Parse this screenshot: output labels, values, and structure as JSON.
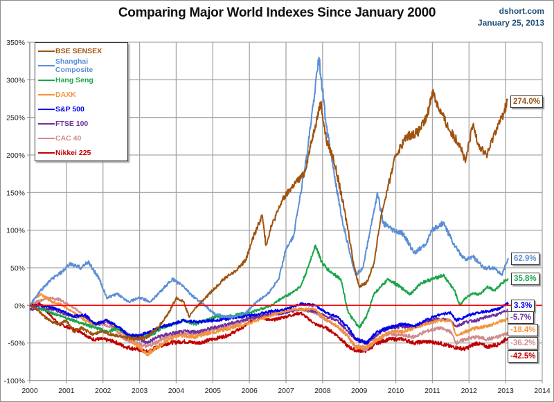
{
  "header": {
    "title": "Comparing Major World Indexes Since January 2000",
    "source": "dshort.com",
    "date": "January 25, 2013"
  },
  "chart_data": {
    "type": "line",
    "title": "Comparing Major World Indexes Since January 2000",
    "xlabel": "",
    "ylabel": "",
    "xlim": [
      2000,
      2014
    ],
    "ylim": [
      -100,
      350
    ],
    "grid": true,
    "legend_position": "top-left",
    "x_ticks": [
      "2000",
      "2001",
      "2002",
      "2003",
      "2004",
      "2005",
      "2006",
      "2007",
      "2008",
      "2009",
      "2010",
      "2011",
      "2012",
      "2013",
      "2014"
    ],
    "y_ticks": [
      "350%",
      "300%",
      "250%",
      "200%",
      "150%",
      "100%",
      "50%",
      "0%",
      "-50%",
      "-100%"
    ],
    "y_tick_values": [
      350,
      300,
      250,
      200,
      150,
      100,
      50,
      0,
      -50,
      -100
    ],
    "reference_line": {
      "value": 0,
      "color": "#ff0000"
    },
    "series": [
      {
        "name": "BSE SENSEX",
        "color": "#a0520f",
        "end_label": "274.0%",
        "x": [
          2000,
          2000.2,
          2000.4,
          2000.6,
          2000.8,
          2001,
          2001.2,
          2001.4,
          2001.7,
          2002,
          2002.3,
          2002.6,
          2002.9,
          2003.2,
          2003.5,
          2003.8,
          2004,
          2004.2,
          2004.35,
          2004.5,
          2004.8,
          2005,
          2005.3,
          2005.6,
          2005.9,
          2006.1,
          2006.35,
          2006.45,
          2006.6,
          2006.9,
          2007.2,
          2007.5,
          2007.8,
          2007.95,
          2008.1,
          2008.3,
          2008.5,
          2008.7,
          2008.85,
          2009,
          2009.2,
          2009.4,
          2009.6,
          2009.8,
          2010,
          2010.3,
          2010.6,
          2010.85,
          2011,
          2011.2,
          2011.5,
          2011.75,
          2011.9,
          2012.1,
          2012.3,
          2012.5,
          2012.7,
          2012.9,
          2013.07
        ],
        "y": [
          0,
          -5,
          -15,
          -22,
          -25,
          -20,
          -35,
          -30,
          -38,
          -35,
          -40,
          -42,
          -45,
          -42,
          -30,
          -10,
          10,
          5,
          -15,
          -5,
          10,
          20,
          35,
          45,
          60,
          90,
          120,
          80,
          105,
          140,
          160,
          175,
          240,
          270,
          220,
          195,
          150,
          100,
          55,
          25,
          30,
          55,
          120,
          160,
          200,
          225,
          230,
          250,
          285,
          260,
          230,
          215,
          190,
          240,
          210,
          200,
          230,
          250,
          274
        ]
      },
      {
        "name": "Shanghai Composite",
        "color": "#5b8fd6",
        "end_label": "62.9%",
        "x": [
          2000,
          2000.3,
          2000.6,
          2000.9,
          2001.1,
          2001.4,
          2001.6,
          2001.9,
          2002.1,
          2002.4,
          2002.7,
          2003,
          2003.3,
          2003.6,
          2003.9,
          2004.2,
          2004.5,
          2004.8,
          2005,
          2005.3,
          2005.6,
          2005.9,
          2006.2,
          2006.5,
          2006.8,
          2007,
          2007.2,
          2007.4,
          2007.6,
          2007.8,
          2007.9,
          2008.1,
          2008.3,
          2008.5,
          2008.7,
          2008.9,
          2009.1,
          2009.3,
          2009.5,
          2009.65,
          2009.9,
          2010.2,
          2010.5,
          2010.8,
          2011,
          2011.3,
          2011.6,
          2011.9,
          2012.1,
          2012.4,
          2012.7,
          2012.9,
          2013.07
        ],
        "y": [
          0,
          20,
          35,
          45,
          55,
          50,
          58,
          35,
          10,
          15,
          5,
          10,
          5,
          20,
          35,
          25,
          10,
          0,
          -10,
          -15,
          -15,
          -10,
          5,
          15,
          35,
          75,
          90,
          150,
          210,
          290,
          330,
          240,
          180,
          120,
          80,
          40,
          50,
          100,
          150,
          110,
          100,
          95,
          70,
          80,
          100,
          110,
          80,
          60,
          65,
          50,
          50,
          40,
          62.9
        ]
      },
      {
        "name": "Hang Seng",
        "color": "#1aa64a",
        "end_label": "35.8%",
        "x": [
          2000,
          2000.3,
          2000.6,
          2000.9,
          2001.2,
          2001.5,
          2001.8,
          2002.1,
          2002.4,
          2002.7,
          2003,
          2003.3,
          2003.6,
          2003.9,
          2004.2,
          2004.5,
          2004.8,
          2005.1,
          2005.4,
          2005.7,
          2006,
          2006.3,
          2006.6,
          2006.9,
          2007.1,
          2007.4,
          2007.6,
          2007.8,
          2008,
          2008.2,
          2008.5,
          2008.7,
          2008.85,
          2009,
          2009.2,
          2009.4,
          2009.6,
          2009.8,
          2010.1,
          2010.4,
          2010.7,
          2011,
          2011.3,
          2011.6,
          2011.75,
          2011.9,
          2012.1,
          2012.3,
          2012.5,
          2012.7,
          2012.9,
          2013.07
        ],
        "y": [
          0,
          -5,
          -10,
          -15,
          -20,
          -25,
          -30,
          -35,
          -30,
          -40,
          -42,
          -40,
          -30,
          -25,
          -20,
          -25,
          -20,
          -15,
          -15,
          -12,
          -10,
          -5,
          0,
          10,
          15,
          25,
          50,
          80,
          55,
          45,
          35,
          -10,
          -20,
          -30,
          -15,
          15,
          25,
          35,
          25,
          15,
          30,
          35,
          40,
          20,
          0,
          10,
          15,
          15,
          25,
          20,
          30,
          35.8
        ]
      },
      {
        "name": "DAXK",
        "color": "#f5933a",
        "end_label": "-18.4%",
        "x": [
          2000,
          2000.15,
          2000.3,
          2000.6,
          2000.9,
          2001.2,
          2001.5,
          2001.8,
          2002.1,
          2002.4,
          2002.7,
          2003,
          2003.2,
          2003.5,
          2003.8,
          2004.1,
          2004.5,
          2004.8,
          2005.1,
          2005.5,
          2005.9,
          2006.2,
          2006.5,
          2006.8,
          2007.2,
          2007.5,
          2007.8,
          2008,
          2008.3,
          2008.6,
          2008.9,
          2009.2,
          2009.5,
          2009.8,
          2010.2,
          2010.5,
          2010.8,
          2011.2,
          2011.5,
          2011.65,
          2011.9,
          2012.2,
          2012.5,
          2012.8,
          2013.07
        ],
        "y": [
          0,
          10,
          15,
          5,
          0,
          -10,
          -20,
          -25,
          -20,
          -30,
          -45,
          -55,
          -65,
          -55,
          -45,
          -40,
          -42,
          -38,
          -35,
          -30,
          -25,
          -20,
          -15,
          -10,
          -5,
          -5,
          -5,
          -15,
          -25,
          -35,
          -55,
          -55,
          -45,
          -35,
          -35,
          -30,
          -25,
          -20,
          -20,
          -40,
          -35,
          -30,
          -28,
          -22,
          -18.4
        ]
      },
      {
        "name": "S&P 500",
        "color": "#0000ee",
        "end_label": "3.3%",
        "x": [
          2000,
          2000.3,
          2000.6,
          2000.9,
          2001.2,
          2001.5,
          2001.8,
          2002.1,
          2002.4,
          2002.7,
          2003,
          2003.3,
          2003.6,
          2003.9,
          2004.2,
          2004.6,
          2005,
          2005.4,
          2005.8,
          2006.2,
          2006.6,
          2007,
          2007.4,
          2007.8,
          2008.1,
          2008.4,
          2008.7,
          2008.9,
          2009.2,
          2009.5,
          2009.8,
          2010.2,
          2010.5,
          2010.8,
          2011.2,
          2011.5,
          2011.65,
          2011.9,
          2012.2,
          2012.5,
          2012.8,
          2013.07
        ],
        "y": [
          0,
          0,
          -3,
          -8,
          -15,
          -12,
          -25,
          -20,
          -28,
          -40,
          -40,
          -35,
          -28,
          -25,
          -20,
          -22,
          -20,
          -18,
          -15,
          -12,
          -8,
          -5,
          2,
          0,
          -10,
          -15,
          -30,
          -45,
          -50,
          -35,
          -30,
          -25,
          -28,
          -20,
          -12,
          -10,
          -20,
          -15,
          -10,
          -8,
          -5,
          3.3
        ]
      },
      {
        "name": "FTSE 100",
        "color": "#7030a0",
        "end_label": "-5.7%",
        "x": [
          2000,
          2000.3,
          2000.6,
          2000.9,
          2001.2,
          2001.5,
          2001.8,
          2002.1,
          2002.4,
          2002.7,
          2003,
          2003.2,
          2003.5,
          2003.8,
          2004.2,
          2004.6,
          2005,
          2005.4,
          2005.8,
          2006.2,
          2006.6,
          2007,
          2007.4,
          2007.8,
          2008.1,
          2008.4,
          2008.7,
          2008.9,
          2009.2,
          2009.5,
          2009.8,
          2010.2,
          2010.5,
          2010.8,
          2011.2,
          2011.5,
          2011.65,
          2011.9,
          2012.2,
          2012.5,
          2012.8,
          2013.07
        ],
        "y": [
          -5,
          -5,
          -5,
          -10,
          -15,
          -15,
          -25,
          -22,
          -30,
          -40,
          -45,
          -50,
          -42,
          -38,
          -35,
          -35,
          -30,
          -25,
          -20,
          -15,
          -12,
          -10,
          -5,
          -8,
          -15,
          -20,
          -35,
          -45,
          -50,
          -38,
          -30,
          -28,
          -30,
          -22,
          -18,
          -20,
          -28,
          -22,
          -20,
          -15,
          -12,
          -5.7
        ]
      },
      {
        "name": "CAC 40",
        "color": "#d08c8c",
        "end_label": "-36.2%",
        "x": [
          2000,
          2000.2,
          2000.5,
          2000.8,
          2001.1,
          2001.4,
          2001.7,
          2002,
          2002.3,
          2002.6,
          2002.9,
          2003.2,
          2003.5,
          2003.8,
          2004.2,
          2004.6,
          2005,
          2005.4,
          2005.8,
          2006.2,
          2006.6,
          2007,
          2007.4,
          2007.8,
          2008.1,
          2008.4,
          2008.7,
          2008.9,
          2009.2,
          2009.5,
          2009.8,
          2010.2,
          2010.5,
          2010.8,
          2011.2,
          2011.5,
          2011.65,
          2011.9,
          2012.2,
          2012.5,
          2012.8,
          2013.07
        ],
        "y": [
          0,
          5,
          10,
          8,
          0,
          -10,
          -25,
          -25,
          -30,
          -45,
          -50,
          -55,
          -48,
          -40,
          -38,
          -38,
          -32,
          -28,
          -22,
          -15,
          -12,
          -8,
          -5,
          -10,
          -20,
          -28,
          -42,
          -55,
          -58,
          -45,
          -38,
          -40,
          -42,
          -35,
          -30,
          -35,
          -50,
          -45,
          -42,
          -45,
          -42,
          -36.2
        ]
      },
      {
        "name": "Nikkei 225",
        "color": "#c00000",
        "end_label": "-42.5%",
        "x": [
          2000,
          2000.2,
          2000.5,
          2000.8,
          2001.1,
          2001.4,
          2001.7,
          2002,
          2002.3,
          2002.6,
          2002.9,
          2003.2,
          2003.5,
          2003.8,
          2004.2,
          2004.6,
          2005,
          2005.4,
          2005.8,
          2006.2,
          2006.6,
          2007,
          2007.4,
          2007.8,
          2008.1,
          2008.4,
          2008.7,
          2008.9,
          2009.2,
          2009.5,
          2009.8,
          2010.2,
          2010.5,
          2010.8,
          2011.2,
          2011.5,
          2011.9,
          2012.2,
          2012.5,
          2012.8,
          2013.07
        ],
        "y": [
          0,
          5,
          -10,
          -25,
          -30,
          -35,
          -45,
          -45,
          -48,
          -55,
          -58,
          -62,
          -55,
          -50,
          -48,
          -50,
          -45,
          -40,
          -30,
          -15,
          -20,
          -15,
          -10,
          -25,
          -30,
          -40,
          -55,
          -60,
          -60,
          -50,
          -45,
          -45,
          -50,
          -48,
          -50,
          -55,
          -58,
          -50,
          -55,
          -52,
          -42.5
        ]
      }
    ]
  }
}
